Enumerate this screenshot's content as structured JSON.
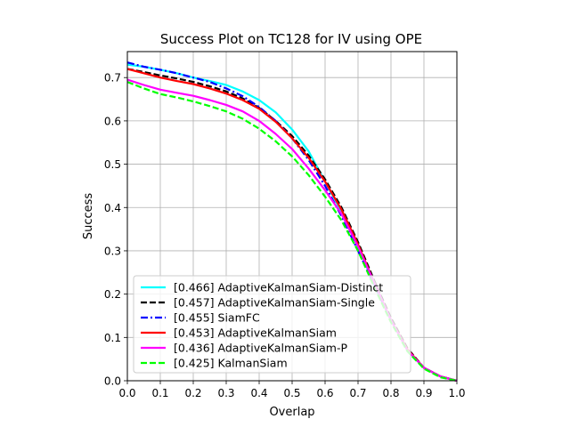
{
  "chart_data": {
    "type": "line",
    "title": "Success Plot on TC128 for IV using OPE",
    "xlabel": "Overlap",
    "ylabel": "Success",
    "xlim": [
      0,
      1
    ],
    "ylim": [
      0,
      0.76
    ],
    "xticks": [
      "0.0",
      "0.1",
      "0.2",
      "0.3",
      "0.4",
      "0.5",
      "0.6",
      "0.7",
      "0.8",
      "0.9",
      "1.0"
    ],
    "yticks": [
      "0.0",
      "0.1",
      "0.2",
      "0.3",
      "0.4",
      "0.5",
      "0.6",
      "0.7"
    ],
    "grid": true,
    "legend_position": "lower-left",
    "x": [
      0,
      0.05,
      0.1,
      0.15,
      0.2,
      0.25,
      0.3,
      0.35,
      0.4,
      0.45,
      0.5,
      0.55,
      0.6,
      0.65,
      0.7,
      0.75,
      0.8,
      0.85,
      0.9,
      0.95,
      1.0
    ],
    "series": [
      {
        "name": "[0.466] AdaptiveKalmanSiam-Distinct",
        "color": "#00ffff",
        "dash": "solid",
        "values": [
          0.73,
          0.725,
          0.718,
          0.71,
          0.7,
          0.692,
          0.683,
          0.668,
          0.648,
          0.62,
          0.58,
          0.53,
          0.46,
          0.39,
          0.31,
          0.22,
          0.14,
          0.07,
          0.03,
          0.01,
          0.0
        ]
      },
      {
        "name": "[0.457] AdaptiveKalmanSiam-Single",
        "color": "#000000",
        "dash": "dashed",
        "values": [
          0.72,
          0.713,
          0.705,
          0.698,
          0.69,
          0.68,
          0.668,
          0.652,
          0.63,
          0.6,
          0.565,
          0.52,
          0.465,
          0.4,
          0.32,
          0.23,
          0.145,
          0.075,
          0.03,
          0.01,
          0.0
        ]
      },
      {
        "name": "[0.455] SiamFC",
        "color": "#0000ff",
        "dash": "dashdot",
        "values": [
          0.735,
          0.725,
          0.718,
          0.71,
          0.7,
          0.69,
          0.675,
          0.657,
          0.632,
          0.6,
          0.56,
          0.51,
          0.45,
          0.38,
          0.3,
          0.22,
          0.14,
          0.07,
          0.03,
          0.01,
          0.0
        ]
      },
      {
        "name": "[0.453] AdaptiveKalmanSiam",
        "color": "#ff0000",
        "dash": "solid",
        "values": [
          0.72,
          0.71,
          0.7,
          0.692,
          0.685,
          0.675,
          0.663,
          0.648,
          0.628,
          0.598,
          0.56,
          0.515,
          0.46,
          0.395,
          0.315,
          0.225,
          0.14,
          0.072,
          0.03,
          0.01,
          0.0
        ]
      },
      {
        "name": "[0.436] AdaptiveKalmanSiam-P",
        "color": "#ff00ff",
        "dash": "solid",
        "values": [
          0.695,
          0.683,
          0.672,
          0.665,
          0.658,
          0.648,
          0.637,
          0.622,
          0.6,
          0.57,
          0.535,
          0.49,
          0.44,
          0.385,
          0.31,
          0.225,
          0.14,
          0.07,
          0.03,
          0.01,
          0.0
        ]
      },
      {
        "name": "[0.425] KalmanSiam",
        "color": "#00ff00",
        "dash": "dashed",
        "values": [
          0.69,
          0.675,
          0.662,
          0.654,
          0.645,
          0.634,
          0.622,
          0.605,
          0.582,
          0.553,
          0.518,
          0.475,
          0.425,
          0.37,
          0.3,
          0.215,
          0.135,
          0.068,
          0.028,
          0.008,
          0.0
        ]
      }
    ]
  }
}
